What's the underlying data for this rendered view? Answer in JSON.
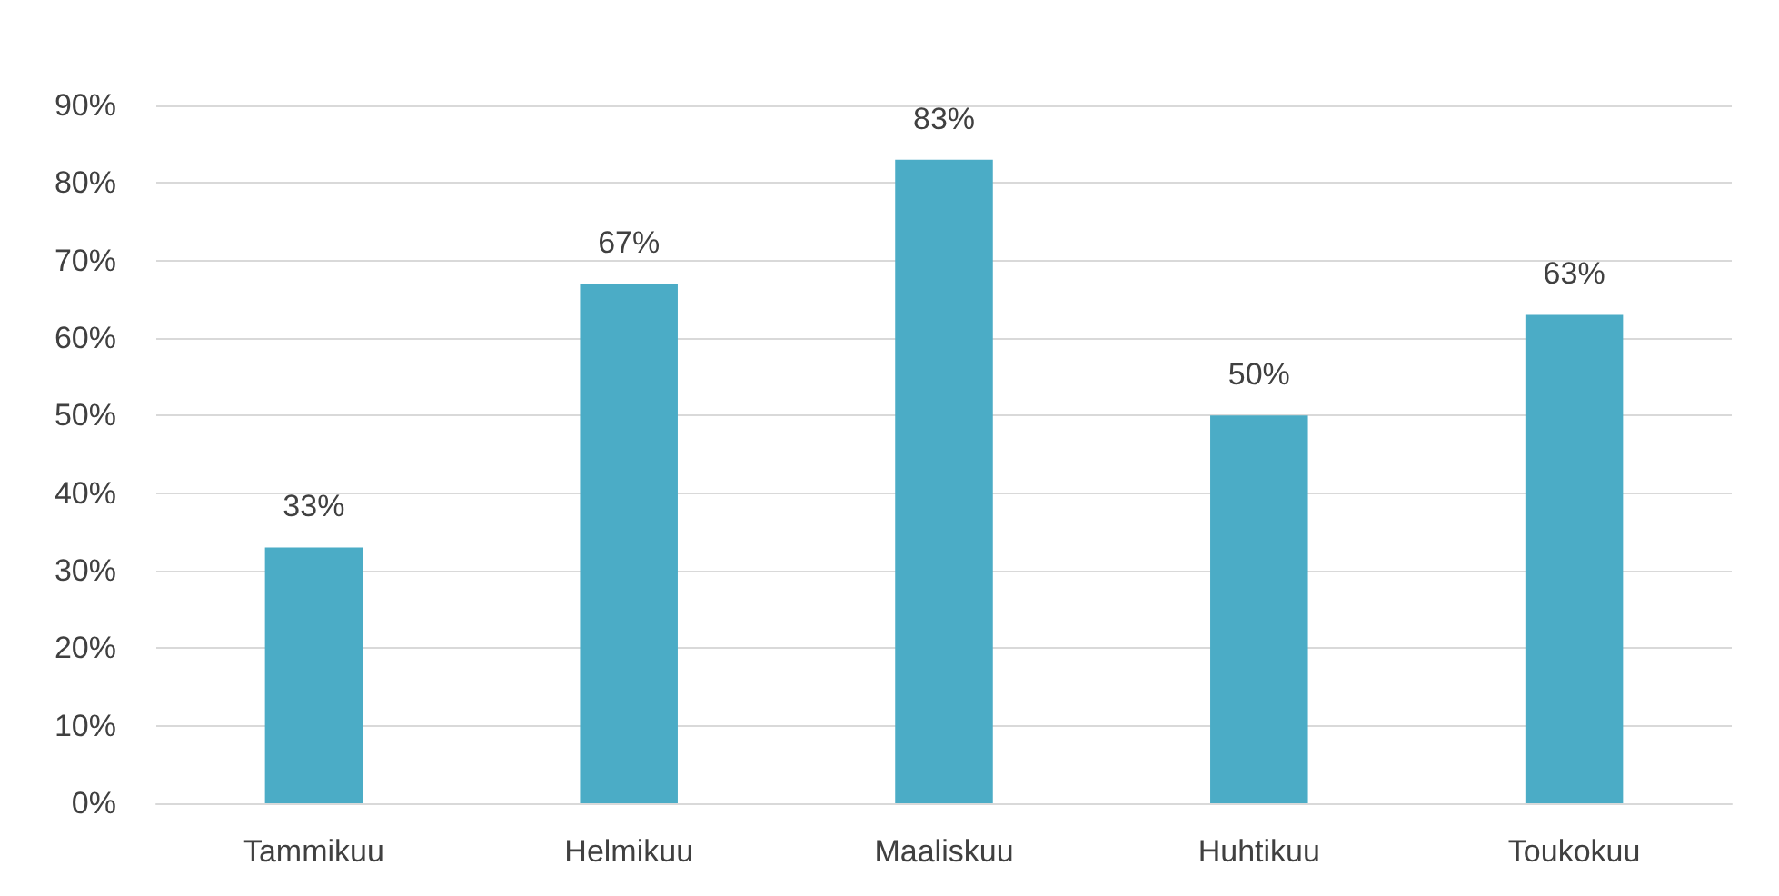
{
  "chart_data": {
    "type": "bar",
    "categories": [
      "Tammikuu",
      "Helmikuu",
      "Maaliskuu",
      "Huhtikuu",
      "Toukokuu"
    ],
    "values": [
      33,
      67,
      83,
      50,
      63
    ],
    "value_labels": [
      "33%",
      "67%",
      "83%",
      "50%",
      "63%"
    ],
    "color": "#4bacc6",
    "ylim": [
      0,
      90
    ],
    "yticks": [
      {
        "value": 0,
        "label": "0%"
      },
      {
        "value": 10,
        "label": "10%"
      },
      {
        "value": 20,
        "label": "20%"
      },
      {
        "value": 30,
        "label": "30%"
      },
      {
        "value": 40,
        "label": "40%"
      },
      {
        "value": 50,
        "label": "50%"
      },
      {
        "value": 60,
        "label": "60%"
      },
      {
        "value": 70,
        "label": "70%"
      },
      {
        "value": 80,
        "label": "80%"
      },
      {
        "value": 90,
        "label": "90%"
      }
    ],
    "grid": "y"
  }
}
